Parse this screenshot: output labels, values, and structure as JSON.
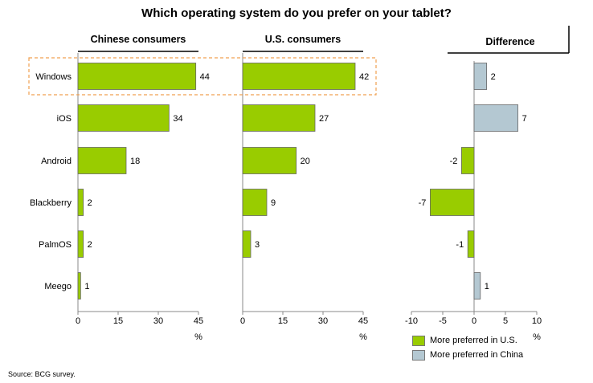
{
  "chart_data": {
    "type": "bar",
    "title": "Which operating system do you prefer on your tablet?",
    "categories": [
      "Windows",
      "iOS",
      "Android",
      "Blackberry",
      "PalmOS",
      "Meego"
    ],
    "highlighted_category": "Windows",
    "panels": [
      {
        "title": "Chinese consumers",
        "values": [
          44,
          34,
          18,
          2,
          2,
          1
        ],
        "xlim": [
          0,
          45
        ],
        "ticks": [
          "0",
          "15",
          "30",
          "45"
        ],
        "unit": "%"
      },
      {
        "title": "U.S. consumers",
        "values": [
          42,
          27,
          20,
          9,
          3,
          0
        ],
        "labels": [
          "42",
          "27",
          "20",
          "9",
          "3",
          ""
        ],
        "xlim": [
          0,
          45
        ],
        "ticks": [
          "0",
          "15",
          "30",
          "45"
        ],
        "unit": "%"
      },
      {
        "title": "Difference",
        "values": [
          2,
          7,
          -2,
          -7,
          -1,
          1
        ],
        "xlim": [
          -10,
          10
        ],
        "ticks": [
          "-10",
          "-5",
          "0",
          "5",
          "10"
        ],
        "unit": "%"
      }
    ],
    "legend": [
      {
        "label": "More preferred in U.S.",
        "color": "#99cc00"
      },
      {
        "label": "More preferred in China",
        "color": "#b4c8d2"
      }
    ],
    "source": "Source: BCG survey."
  },
  "colors": {
    "green": "#99cc00",
    "blue": "#b4c8d2",
    "highlight": "#f0a050"
  }
}
